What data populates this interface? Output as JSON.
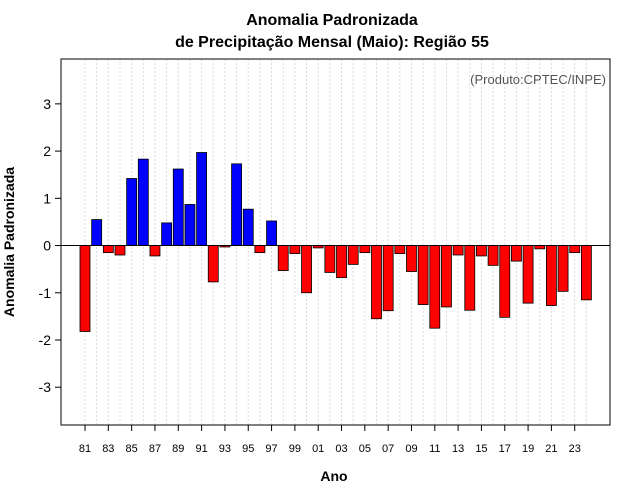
{
  "chart_data": {
    "type": "bar",
    "title_line1": "Anomalia Padronizada",
    "title_line2": "de Precipitação Mensal (Maio): Região 55",
    "xlabel": "Ano",
    "ylabel": "Anomalia Padronizada",
    "annotation": "(Produto:CPTEC/INPE)",
    "ylim": [
      -3.8,
      3.95
    ],
    "yticks": [
      "-3",
      "-2",
      "-1",
      "0",
      "1",
      "2",
      "3"
    ],
    "ytick_values": [
      -3,
      -2,
      -1,
      0,
      1,
      2,
      3
    ],
    "grid": true,
    "positive_color": "#0000ff",
    "negative_color": "#ff0000",
    "xtick_labels": [
      "81",
      "83",
      "85",
      "87",
      "89",
      "91",
      "93",
      "95",
      "97",
      "99",
      "01",
      "03",
      "05",
      "07",
      "09",
      "11",
      "13",
      "15",
      "17",
      "19",
      "21",
      "23"
    ],
    "categories": [
      "1981",
      "1982",
      "1983",
      "1984",
      "1985",
      "1986",
      "1987",
      "1988",
      "1989",
      "1990",
      "1991",
      "1992",
      "1993",
      "1994",
      "1995",
      "1996",
      "1997",
      "1998",
      "1999",
      "2000",
      "2001",
      "2002",
      "2003",
      "2004",
      "2005",
      "2006",
      "2007",
      "2008",
      "2009",
      "2010",
      "2011",
      "2012",
      "2013",
      "2014",
      "2015",
      "2016",
      "2017",
      "2018",
      "2019",
      "2020",
      "2021",
      "2022",
      "2023",
      "2024"
    ],
    "values": [
      -1.82,
      0.55,
      -0.15,
      -0.2,
      1.42,
      1.83,
      -0.22,
      0.48,
      1.62,
      0.87,
      1.97,
      -0.77,
      -0.03,
      1.73,
      0.77,
      -0.15,
      0.52,
      -0.53,
      -0.17,
      -1.0,
      -0.05,
      -0.57,
      -0.68,
      -0.4,
      -0.15,
      -1.55,
      -1.38,
      -0.17,
      -0.55,
      -1.25,
      -1.75,
      -1.3,
      -0.2,
      -1.37,
      -0.22,
      -0.42,
      -1.52,
      -0.33,
      -1.22,
      -0.07,
      -1.27,
      -0.97,
      -0.15,
      -1.15
    ]
  }
}
